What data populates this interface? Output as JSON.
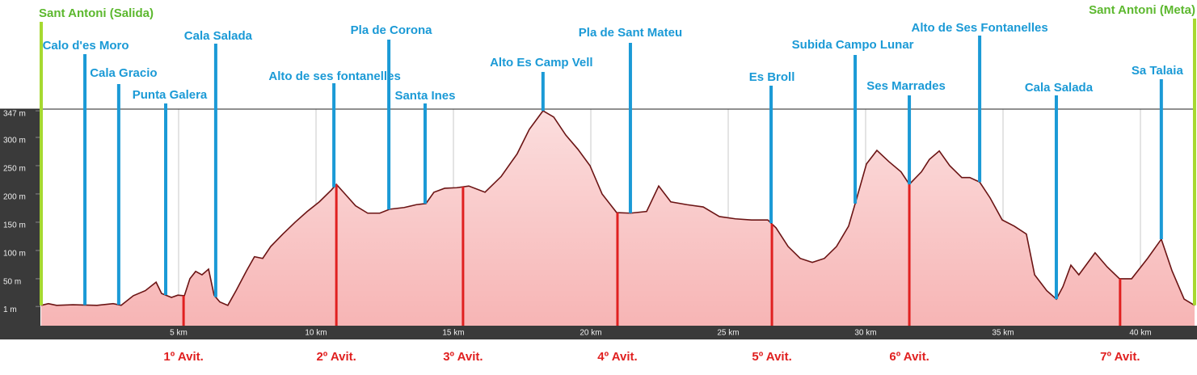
{
  "chart_data": {
    "type": "area",
    "x": [
      0,
      0.26,
      0.56,
      1.15,
      2.03,
      2.62,
      2.91,
      3.35,
      3.79,
      4.18,
      4.38,
      4.74,
      4.97,
      5.21,
      5.41,
      5.62,
      5.85,
      6.09,
      6.29,
      6.5,
      6.79,
      7.09,
      7.47,
      7.76,
      8.06,
      8.35,
      8.79,
      9.24,
      9.68,
      10.12,
      10.56,
      10.74,
      11.0,
      11.44,
      11.88,
      12.32,
      12.68,
      13.21,
      13.65,
      14.0,
      14.29,
      14.68,
      15.12,
      15.56,
      16.15,
      16.74,
      17.32,
      17.76,
      18.26,
      18.65,
      19.09,
      19.53,
      19.97,
      20.41,
      20.94,
      21.44,
      22.03,
      22.47,
      22.91,
      23.5,
      24.09,
      24.68,
      25.26,
      25.85,
      26.44,
      26.74,
      27.18,
      27.62,
      28.06,
      28.5,
      28.94,
      29.38,
      29.68,
      30.03,
      30.41,
      30.85,
      31.29,
      31.59,
      32.03,
      32.32,
      32.68,
      33.06,
      33.5,
      33.79,
      34.15,
      34.53,
      34.97,
      35.41,
      35.85,
      36.15,
      36.59,
      36.94,
      37.18,
      37.47,
      37.76,
      38.35,
      38.79,
      39.24,
      39.68,
      40.26,
      40.76,
      41.15,
      41.59,
      41.97
    ],
    "values": [
      3,
      6,
      3,
      4,
      3,
      6,
      3,
      20,
      29,
      44,
      24,
      17,
      21,
      20,
      50,
      63,
      57,
      67,
      21,
      9,
      3,
      29,
      64,
      89,
      86,
      107,
      129,
      150,
      169,
      186,
      207,
      217,
      203,
      179,
      166,
      166,
      173,
      176,
      181,
      183,
      203,
      210,
      211,
      214,
      203,
      231,
      271,
      314,
      347,
      336,
      304,
      279,
      250,
      200,
      167,
      166,
      169,
      214,
      186,
      181,
      177,
      160,
      156,
      154,
      154,
      140,
      107,
      86,
      79,
      86,
      107,
      143,
      193,
      253,
      277,
      257,
      239,
      217,
      239,
      261,
      276,
      250,
      229,
      229,
      221,
      193,
      154,
      143,
      129,
      57,
      29,
      14,
      36,
      74,
      57,
      96,
      71,
      50,
      50,
      86,
      120,
      64,
      14,
      3
    ],
    "color": "#f7b5b5",
    "line_color": "#6b1414",
    "xlim": [
      0,
      42
    ],
    "ylim": [
      -33,
      350
    ],
    "xticks": [
      {
        "value": 5,
        "label": "5 km"
      },
      {
        "value": 10,
        "label": "10 km"
      },
      {
        "value": 15,
        "label": "15 km"
      },
      {
        "value": 20,
        "label": "20 km"
      },
      {
        "value": 25,
        "label": "25 km"
      },
      {
        "value": 30,
        "label": "30 km"
      },
      {
        "value": 35,
        "label": "35 km"
      },
      {
        "value": 40,
        "label": "40 km"
      }
    ],
    "yticks": [
      {
        "value": 1,
        "label": "1 m"
      },
      {
        "value": 50,
        "label": "50 m"
      },
      {
        "value": 100,
        "label": "100 m"
      },
      {
        "value": 150,
        "label": "150 m"
      },
      {
        "value": 200,
        "label": "200 m"
      },
      {
        "value": 250,
        "label": "250 m"
      },
      {
        "value": 300,
        "label": "300 m"
      },
      {
        "value": 347,
        "label": "347 m"
      }
    ],
    "start": {
      "name": "Sant Antoni (Salida)",
      "km": 0
    },
    "end": {
      "name": "Sant Antoni (Meta)",
      "km": 41.97
    },
    "waypoints": [
      {
        "name": "Calo d'es Moro",
        "km": 1.59
      },
      {
        "name": "Cala Gracio",
        "km": 2.82
      },
      {
        "name": "Punta Galera",
        "km": 4.53
      },
      {
        "name": "Cala Salada",
        "km": 6.35
      },
      {
        "name": "Alto de ses fontanelles",
        "km": 10.65
      },
      {
        "name": "Pla de Corona",
        "km": 12.65
      },
      {
        "name": "Santa Ines",
        "km": 13.97
      },
      {
        "name": "Alto Es Camp Vell",
        "km": 18.26
      },
      {
        "name": "Pla de Sant Mateu",
        "km": 21.44
      },
      {
        "name": "Es Broll",
        "km": 26.56
      },
      {
        "name": "Subida Campo Lunar",
        "km": 29.62
      },
      {
        "name": "Ses Marrades",
        "km": 31.59
      },
      {
        "name": "Alto de Ses Fontanelles",
        "km": 34.15
      },
      {
        "name": "Cala Salada",
        "km": 36.94
      },
      {
        "name": "Sa Talaia",
        "km": 40.76
      }
    ],
    "waypoint_color": "#1b9ad6",
    "avituallamientos": [
      {
        "name": "1º Avit.",
        "km": 5.18
      },
      {
        "name": "2º Avit.",
        "km": 10.74
      },
      {
        "name": "3º Avit.",
        "km": 15.35
      },
      {
        "name": "4º Avit.",
        "km": 20.97
      },
      {
        "name": "5º Avit.",
        "km": 26.59
      },
      {
        "name": "6º Avit.",
        "km": 31.59
      },
      {
        "name": "7º Avit.",
        "km": 39.26
      }
    ],
    "avit_color": "#e02020",
    "grid": true
  }
}
